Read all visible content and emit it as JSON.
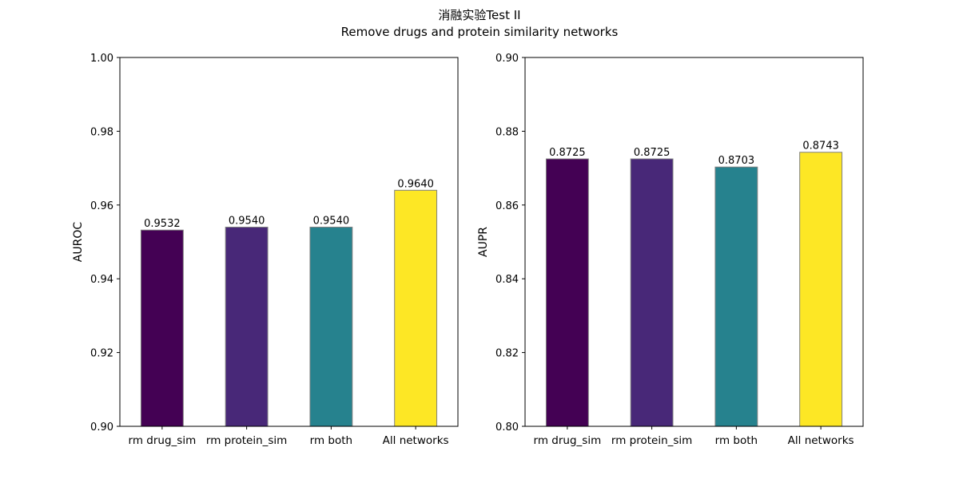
{
  "figure": {
    "suptitle_line1": "消融实验Test II",
    "suptitle_line2": "Remove drugs and protein similarity networks"
  },
  "colors": {
    "bars": [
      "#440154",
      "#482878",
      "#26828e",
      "#fde725"
    ],
    "bar_edge": "#808080",
    "axes": "#000000",
    "background": "#ffffff"
  },
  "chart_data": [
    {
      "type": "bar",
      "title": "",
      "xlabel": "",
      "ylabel": "AUROC",
      "categories": [
        "rm drug_sim",
        "rm protein_sim",
        "rm both",
        "All networks"
      ],
      "values": [
        0.9532,
        0.954,
        0.954,
        0.964
      ],
      "value_labels": [
        "0.9532",
        "0.9540",
        "0.9540",
        "0.9640"
      ],
      "ylim": [
        0.9,
        1.0
      ],
      "yticks": [
        "0.90",
        "0.92",
        "0.94",
        "0.96",
        "0.98",
        "1.00"
      ],
      "grid": false
    },
    {
      "type": "bar",
      "title": "",
      "xlabel": "",
      "ylabel": "AUPR",
      "categories": [
        "rm drug_sim",
        "rm protein_sim",
        "rm both",
        "All networks"
      ],
      "values": [
        0.8725,
        0.8725,
        0.8703,
        0.8743
      ],
      "value_labels": [
        "0.8725",
        "0.8725",
        "0.8703",
        "0.8743"
      ],
      "ylim": [
        0.8,
        0.9
      ],
      "yticks": [
        "0.80",
        "0.82",
        "0.84",
        "0.86",
        "0.88",
        "0.90"
      ],
      "grid": false
    }
  ]
}
